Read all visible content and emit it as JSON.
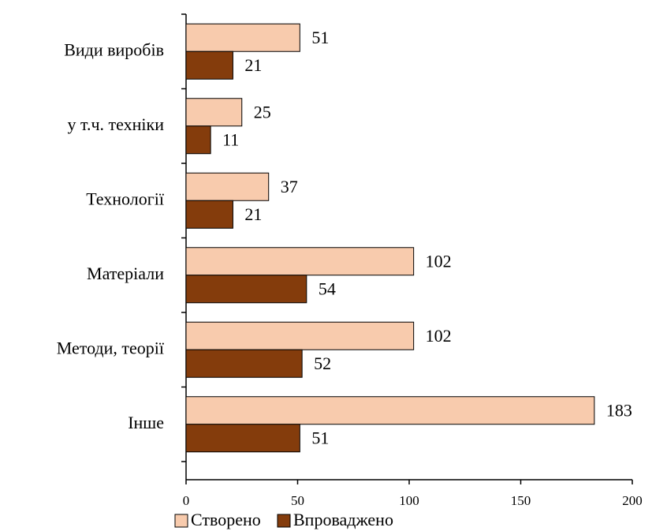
{
  "chart_data": {
    "type": "hbar",
    "categories": [
      "Види виробів",
      "у т.ч. техніки",
      "Технології",
      "Матеріали",
      "Методи, теорії",
      "Інше"
    ],
    "series": [
      {
        "name": "Створено",
        "color": "#f8cbad",
        "values": [
          51,
          25,
          37,
          102,
          102,
          183
        ]
      },
      {
        "name": "Впроваджено",
        "color": "#843c0c",
        "values": [
          21,
          11,
          21,
          54,
          52,
          51
        ]
      }
    ],
    "xlim": [
      0,
      200
    ],
    "xticks": [
      0,
      50,
      100,
      150,
      200
    ]
  }
}
